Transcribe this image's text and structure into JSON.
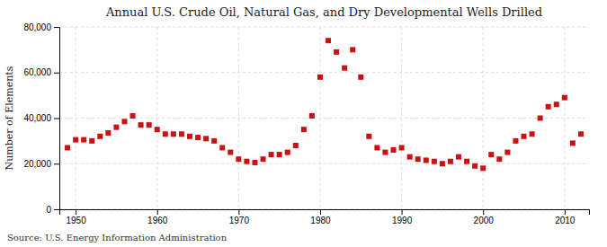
{
  "chart_data": {
    "type": "scatter",
    "title": "Annual U.S. Crude Oil, Natural Gas, and Dry Developmental Wells Drilled",
    "ylabel": "Number of Elements",
    "annotation": "Source: U.S. Energy Information Administration",
    "x": [
      1949,
      1950,
      1951,
      1952,
      1953,
      1954,
      1955,
      1956,
      1957,
      1958,
      1959,
      1960,
      1961,
      1962,
      1963,
      1964,
      1965,
      1966,
      1967,
      1968,
      1969,
      1970,
      1971,
      1972,
      1973,
      1974,
      1975,
      1976,
      1977,
      1978,
      1979,
      1980,
      1981,
      1982,
      1983,
      1984,
      1985,
      1986,
      1987,
      1988,
      1989,
      1990,
      1991,
      1992,
      1993,
      1994,
      1995,
      1996,
      1997,
      1998,
      1999,
      2000,
      2001,
      2002,
      2003,
      2004,
      2005,
      2006,
      2007,
      2008,
      2009,
      2010,
      2011,
      2012
    ],
    "values": [
      27000,
      30500,
      30500,
      30000,
      32000,
      33500,
      36000,
      38500,
      41000,
      37000,
      37000,
      35000,
      33000,
      33000,
      33000,
      32000,
      31500,
      31000,
      30000,
      27000,
      25000,
      22000,
      21000,
      20500,
      22000,
      24000,
      24000,
      25000,
      28000,
      35000,
      41000,
      58000,
      74000,
      69000,
      62000,
      70000,
      58000,
      32000,
      27000,
      25000,
      26000,
      27000,
      23000,
      22000,
      21500,
      21000,
      20000,
      21000,
      23000,
      21000,
      19000,
      18000,
      24000,
      22000,
      25000,
      30000,
      32000,
      33000,
      40000,
      45000,
      46000,
      49000,
      29000,
      33000
    ],
    "color": "#cc1111",
    "marker": "square",
    "xlim": [
      1948,
      2013
    ],
    "ylim": [
      0,
      80000
    ],
    "xticks": [
      1950,
      1960,
      1970,
      1980,
      1990,
      2000,
      2010
    ],
    "yticks": [
      0,
      {
        "value": 20000,
        "label": "20,000"
      },
      {
        "value": 40000,
        "label": "40,000"
      },
      {
        "value": 60000,
        "label": "60,000"
      },
      {
        "value": 80000,
        "label": "80,000"
      }
    ],
    "grid": true
  }
}
